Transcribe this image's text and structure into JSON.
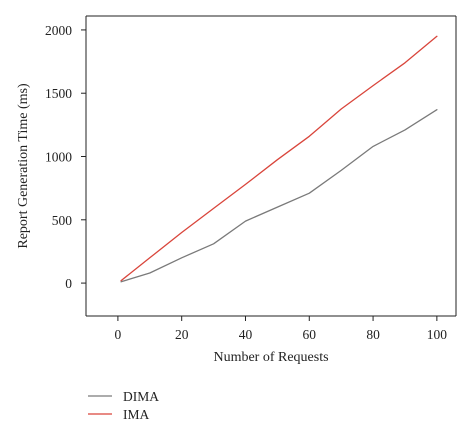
{
  "chart_data": {
    "type": "line",
    "title": "",
    "xlabel": "Number of Requests",
    "ylabel": "Report Generation Time (ms)",
    "xlim": [
      -10,
      106
    ],
    "ylim": [
      -260,
      2110
    ],
    "xticks": [
      0,
      20,
      40,
      60,
      80,
      100
    ],
    "yticks": [
      0,
      500,
      1000,
      1500,
      2000
    ],
    "xtick_labels": [
      "0",
      "20",
      "40",
      "60",
      "80",
      "100"
    ],
    "ytick_labels": [
      "0",
      "500",
      "1000",
      "1500",
      "2000"
    ],
    "grid": false,
    "legend_position": "bottom-left",
    "series": [
      {
        "name": "DIMA",
        "color": "#7a7a7a",
        "x": [
          1,
          10,
          20,
          30,
          40,
          50,
          60,
          70,
          80,
          90,
          100
        ],
        "y": [
          10,
          80,
          200,
          310,
          490,
          600,
          710,
          890,
          1080,
          1210,
          1370
        ]
      },
      {
        "name": "IMA",
        "color": "#d9453b",
        "x": [
          1,
          10,
          20,
          30,
          40,
          50,
          60,
          70,
          80,
          90,
          100
        ],
        "y": [
          20,
          200,
          400,
          590,
          780,
          975,
          1160,
          1375,
          1560,
          1740,
          1950
        ]
      }
    ]
  }
}
